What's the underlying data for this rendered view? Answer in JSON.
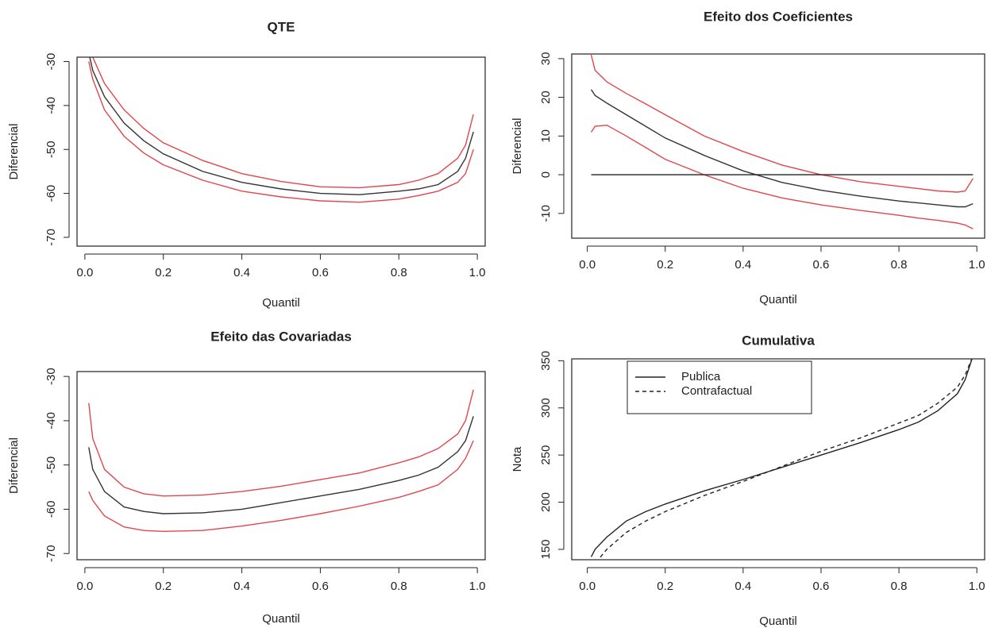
{
  "chart_data": [
    {
      "type": "line",
      "title": "QTE",
      "x_label": "Quantil",
      "y_label": "Diferencial",
      "x": [
        0.01,
        0.02,
        0.05,
        0.1,
        0.15,
        0.2,
        0.3,
        0.4,
        0.5,
        0.6,
        0.7,
        0.8,
        0.85,
        0.9,
        0.95,
        0.97,
        0.99
      ],
      "series": [
        {
          "color": "#e0474c",
          "values": [
            -26,
            -29,
            -35,
            -41,
            -45.2,
            -48.5,
            -52.5,
            -55.5,
            -57.3,
            -58.5,
            -58.7,
            -58,
            -57,
            -55.5,
            -52,
            -49,
            -42
          ]
        },
        {
          "color": "#333333",
          "values": [
            -28,
            -32,
            -38,
            -44,
            -48,
            -51,
            -55,
            -57.5,
            -59,
            -60,
            -60.3,
            -59.5,
            -59,
            -58,
            -55,
            -52,
            -46
          ]
        },
        {
          "color": "#e0474c",
          "values": [
            -30,
            -34,
            -41,
            -47,
            -50.8,
            -53.5,
            -57,
            -59.5,
            -60.8,
            -61.7,
            -62,
            -61.3,
            -60.5,
            -59.5,
            -57.5,
            -55.5,
            -50
          ]
        }
      ],
      "xlim": [
        -0.02,
        1.02
      ],
      "ylim": [
        -72,
        -29
      ],
      "xticks": [
        {
          "value": 0,
          "label": "0.0"
        },
        0.2,
        0.4,
        0.6,
        0.8,
        {
          "value": 1,
          "label": "1.0"
        }
      ],
      "yticks": [
        -70,
        -60,
        -50,
        -40,
        -30
      ]
    },
    {
      "type": "line",
      "title": "Efeito dos Coeficientes",
      "x_label": "Quantil",
      "y_label": "Diferencial",
      "x": [
        0.01,
        0.02,
        0.05,
        0.1,
        0.15,
        0.2,
        0.3,
        0.4,
        0.5,
        0.6,
        0.7,
        0.8,
        0.85,
        0.9,
        0.95,
        0.97,
        0.99
      ],
      "series": [
        {
          "color": "#e0474c",
          "values": [
            31,
            27,
            24,
            21,
            18.3,
            15.5,
            10,
            6,
            2.5,
            0,
            -1.8,
            -3,
            -3.6,
            -4.2,
            -4.5,
            -4.2,
            -1
          ]
        },
        {
          "color": "#333333",
          "values": [
            22,
            20.5,
            18.5,
            15.5,
            12.5,
            9.5,
            5,
            1,
            -2,
            -4,
            -5.5,
            -6.8,
            -7.3,
            -7.8,
            -8.3,
            -8.3,
            -7.5
          ]
        },
        {
          "color": "#e0474c",
          "values": [
            11,
            12.5,
            12.8,
            10,
            7,
            4,
            0,
            -3.5,
            -6,
            -7.8,
            -9.2,
            -10.5,
            -11.2,
            -11.8,
            -12.5,
            -13,
            -14
          ]
        },
        {
          "color": "#222222",
          "values": [
            0,
            0,
            0,
            0,
            0,
            0,
            0,
            0,
            0,
            0,
            0,
            0,
            0,
            0,
            0,
            0,
            0
          ]
        }
      ],
      "xlim": [
        -0.04,
        1.02
      ],
      "ylim": [
        -16.4,
        31.2
      ],
      "xticks": [
        {
          "value": 0,
          "label": "0.0"
        },
        0.2,
        0.4,
        0.6,
        0.8,
        {
          "value": 1,
          "label": "1.0"
        }
      ],
      "yticks": [
        -10,
        0,
        10,
        20,
        30
      ]
    },
    {
      "type": "line",
      "title": "Efeito das Covariadas",
      "x_label": "Quantil",
      "y_label": "Diferencial",
      "x": [
        0.01,
        0.02,
        0.05,
        0.1,
        0.15,
        0.2,
        0.3,
        0.4,
        0.5,
        0.6,
        0.7,
        0.8,
        0.85,
        0.9,
        0.95,
        0.97,
        0.99
      ],
      "series": [
        {
          "color": "#e0474c",
          "values": [
            -36,
            -44,
            -51,
            -55,
            -56.5,
            -57,
            -56.8,
            -56,
            -54.8,
            -53.3,
            -51.8,
            -49.5,
            -48.2,
            -46.3,
            -43,
            -40,
            -33
          ]
        },
        {
          "color": "#333333",
          "values": [
            -46,
            -51,
            -56,
            -59.5,
            -60.5,
            -61,
            -60.8,
            -60,
            -58.5,
            -57,
            -55.5,
            -53.5,
            -52.3,
            -50.5,
            -47,
            -44.5,
            -39
          ]
        },
        {
          "color": "#e0474c",
          "values": [
            -56,
            -58,
            -61.5,
            -64,
            -64.8,
            -65,
            -64.8,
            -63.8,
            -62.5,
            -61,
            -59.3,
            -57.3,
            -56,
            -54.5,
            -51,
            -48.5,
            -44.5
          ]
        }
      ],
      "xlim": [
        -0.02,
        1.02
      ],
      "ylim": [
        -71.4,
        -28.9
      ],
      "xticks": [
        {
          "value": 0,
          "label": "0.0"
        },
        0.2,
        0.4,
        0.6,
        0.8,
        {
          "value": 1,
          "label": "1.0"
        }
      ],
      "yticks": [
        -70,
        -60,
        -50,
        -40,
        -30
      ]
    },
    {
      "type": "line",
      "title": "Cumulativa",
      "x_label": "Quantil",
      "y_label": "Nota",
      "legend": "top-left",
      "x": [
        0.01,
        0.02,
        0.05,
        0.1,
        0.15,
        0.2,
        0.3,
        0.4,
        0.5,
        0.6,
        0.7,
        0.8,
        0.85,
        0.9,
        0.95,
        0.97,
        0.99
      ],
      "series": [
        {
          "name": "Publica",
          "color": "#222222",
          "dash": "solid",
          "values": [
            142,
            150,
            163,
            180,
            190,
            198,
            212,
            224,
            237,
            250,
            263,
            277,
            285,
            297,
            315,
            330,
            355
          ]
        },
        {
          "name": "Contrafactual",
          "color": "#222222",
          "dash": "dashed",
          "values": [
            130,
            135,
            150,
            168,
            180,
            190,
            207,
            222,
            238,
            254,
            268,
            284,
            292,
            305,
            322,
            335,
            355
          ]
        }
      ],
      "xlim": [
        -0.04,
        1.02
      ],
      "ylim": [
        139,
        352
      ],
      "xticks": [
        {
          "value": 0,
          "label": "0.0"
        },
        0.2,
        0.4,
        0.6,
        0.8,
        {
          "value": 1,
          "label": "1.0"
        }
      ],
      "yticks": [
        150,
        200,
        250,
        300,
        350
      ]
    }
  ]
}
